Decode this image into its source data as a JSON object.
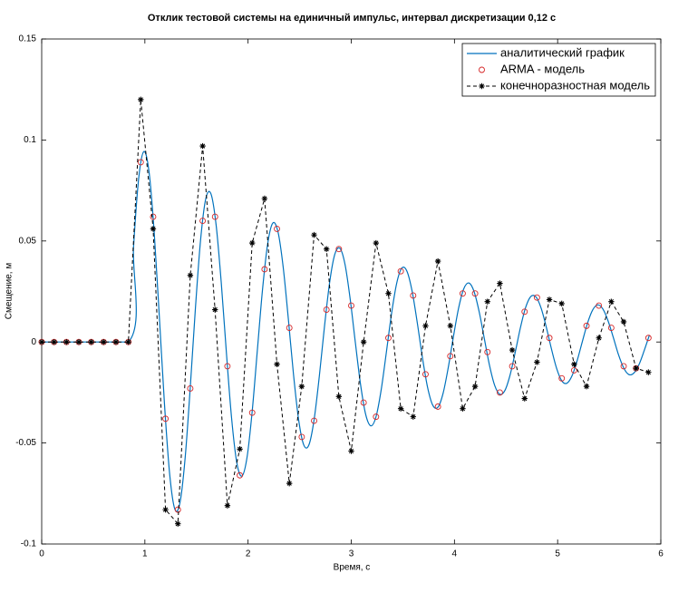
{
  "chart_data": {
    "type": "line",
    "title": "Отклик тестовой системы на единичный импульс,  интервал дискретизации  0,12 с",
    "xlabel": "Время, с",
    "ylabel": "Смещение, м",
    "xlim": [
      0,
      6
    ],
    "ylim": [
      -0.1,
      0.15
    ],
    "xticks": [
      0,
      1,
      2,
      3,
      4,
      5,
      6
    ],
    "yticks": [
      -0.1,
      -0.05,
      0,
      0.05,
      0.1,
      0.15
    ],
    "grid": false,
    "legend": "upper right",
    "series": [
      {
        "name": "аналитический график",
        "color": "#0072bd",
        "style": "solid",
        "marker": "none",
        "x": [
          0,
          0.84,
          0.89,
          0.94,
          0.99,
          1.04,
          1.09,
          1.14,
          1.19,
          1.24,
          1.29,
          1.34,
          1.39,
          1.44,
          1.49,
          1.54,
          1.59,
          1.64,
          1.69,
          1.74,
          1.79,
          1.84,
          1.89,
          1.94,
          1.99,
          2.04,
          2.09,
          2.14,
          2.19,
          2.24,
          2.29,
          2.34,
          2.39,
          2.44,
          2.49,
          2.54,
          2.59,
          2.64,
          2.69,
          2.74,
          2.79,
          2.84,
          2.89,
          2.94,
          2.99,
          3.04,
          3.09,
          3.14,
          3.19,
          3.24,
          3.29,
          3.34,
          3.39,
          3.44,
          3.49,
          3.54,
          3.59,
          3.64,
          3.69,
          3.74,
          3.79,
          3.84,
          3.89,
          3.94,
          3.99,
          4.04,
          4.09,
          4.14,
          4.19,
          4.24,
          4.29,
          4.34,
          4.39,
          4.44,
          4.49,
          4.54,
          4.59,
          4.64,
          4.69,
          4.74,
          4.79,
          4.84,
          4.89,
          4.94,
          4.99,
          5.04,
          5.09,
          5.14,
          5.19,
          5.24,
          5.29,
          5.34,
          5.39,
          5.44,
          5.49,
          5.54,
          5.59,
          5.64,
          5.69,
          5.74,
          5.79,
          5.84,
          5.89
        ],
        "values": [
          0,
          0,
          0.047,
          0.081,
          0.0943,
          0.0844,
          0.0545,
          0.0126,
          -0.0308,
          -0.0653,
          -0.0827,
          -0.0796,
          -0.0575,
          -0.0223,
          0.0169,
          0.0506,
          0.0709,
          0.0734,
          0.0581,
          0.0295,
          -0.0053,
          -0.0375,
          -0.0595,
          -0.0664,
          -0.0571,
          -0.0343,
          -0.0041,
          0.0259,
          0.0486,
          0.0589,
          0.0545,
          0.0372,
          0.0116,
          -0.0159,
          -0.0385,
          -0.051,
          -0.0509,
          -0.0384,
          -0.0172,
          0.0074,
          0.0293,
          0.0433,
          0.0464,
          0.0383,
          0.0211,
          -0.0004,
          -0.021,
          -0.0359,
          -0.0415,
          -0.037,
          -0.0237,
          -0.0052,
          0.0139,
          0.029,
          0.0366,
          0.035,
          0.0251,
          0.0095,
          -0.0078,
          -0.0225,
          -0.0313,
          -0.0323,
          -0.0254,
          -0.0127,
          0.0026,
          0.0167,
          0.0263,
          0.0292,
          0.025,
          0.0149,
          0.0016,
          -0.0116,
          -0.0215,
          -0.0259,
          -0.0239,
          -0.0162,
          -0.0049,
          0.0072,
          0.0171,
          0.0225,
          0.0223,
          0.0168,
          0.0074,
          -0.0034,
          -0.013,
          -0.0192,
          -0.0204,
          -0.0167,
          -0.0091,
          0.0003,
          0.0094,
          0.0159,
          0.0184,
          0.0162,
          0.0103,
          0.0022,
          -0.0063,
          -0.0128,
          -0.0161,
          -0.0153,
          -0.011,
          -0.0041,
          0.0035
        ]
      },
      {
        "name": "ARMA - модель",
        "color": "#d62728",
        "style": "none",
        "marker": "circle",
        "x": [
          0,
          0.12,
          0.24,
          0.36,
          0.48,
          0.6,
          0.72,
          0.84,
          0.96,
          1.08,
          1.2,
          1.32,
          1.44,
          1.56,
          1.68,
          1.8,
          1.92,
          2.04,
          2.16,
          2.28,
          2.4,
          2.52,
          2.64,
          2.76,
          2.88,
          3,
          3.12,
          3.24,
          3.36,
          3.48,
          3.6,
          3.72,
          3.84,
          3.96,
          4.08,
          4.2,
          4.32,
          4.44,
          4.56,
          4.68,
          4.8,
          4.92,
          5.04,
          5.16,
          5.28,
          5.4,
          5.52,
          5.64,
          5.76,
          5.88
        ],
        "values": [
          0,
          0,
          0,
          0,
          0,
          0,
          0,
          0,
          0.089,
          0.062,
          -0.038,
          -0.083,
          -0.023,
          0.06,
          0.062,
          -0.012,
          -0.066,
          -0.035,
          0.036,
          0.056,
          0.007,
          -0.047,
          -0.039,
          0.016,
          0.046,
          0.018,
          -0.03,
          -0.037,
          0.002,
          0.035,
          0.023,
          -0.016,
          -0.032,
          -0.007,
          0.024,
          0.024,
          -0.005,
          -0.025,
          -0.012,
          0.015,
          0.022,
          0.002,
          -0.018,
          -0.014,
          0.008,
          0.018,
          0.007,
          -0.012,
          -0.013,
          0.002
        ]
      },
      {
        "name": "конечноразностная модель",
        "color": "#000000",
        "style": "dashed",
        "marker": "star",
        "x": [
          0,
          0.12,
          0.24,
          0.36,
          0.48,
          0.6,
          0.72,
          0.84,
          0.96,
          1.08,
          1.2,
          1.32,
          1.44,
          1.56,
          1.68,
          1.8,
          1.92,
          2.04,
          2.16,
          2.28,
          2.4,
          2.52,
          2.64,
          2.76,
          2.88,
          3,
          3.12,
          3.24,
          3.36,
          3.48,
          3.6,
          3.72,
          3.84,
          3.96,
          4.08,
          4.2,
          4.32,
          4.44,
          4.56,
          4.68,
          4.8,
          4.92,
          5.04,
          5.16,
          5.28,
          5.4,
          5.52,
          5.64,
          5.76,
          5.88
        ],
        "values": [
          0,
          0,
          0,
          0,
          0,
          0,
          0,
          0,
          0.12,
          0.056,
          -0.083,
          -0.09,
          0.033,
          0.097,
          0.016,
          -0.081,
          -0.053,
          0.049,
          0.071,
          -0.011,
          -0.07,
          -0.022,
          0.053,
          0.046,
          -0.027,
          -0.054,
          0,
          0.049,
          0.024,
          -0.033,
          -0.037,
          0.008,
          0.04,
          0.008,
          -0.033,
          -0.022,
          0.02,
          0.029,
          -0.004,
          -0.028,
          -0.01,
          0.021,
          0.019,
          -0.011,
          -0.022,
          0.002,
          0.02,
          0.01,
          -0.013,
          -0.015
        ]
      }
    ]
  }
}
